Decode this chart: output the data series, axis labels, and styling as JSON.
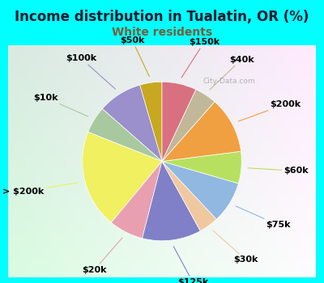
{
  "title": "Income distribution in Tualatin, OR (%)",
  "subtitle": "White residents",
  "background_color": "#00FFFF",
  "labels": [
    "$50k",
    "$100k",
    "$10k",
    "> $200k",
    "$20k",
    "$125k",
    "$30k",
    "$75k",
    "$60k",
    "$200k",
    "$40k",
    "$150k"
  ],
  "sizes": [
    4.5,
    9.0,
    5.5,
    20.0,
    7.0,
    12.0,
    4.0,
    8.5,
    6.5,
    11.5,
    4.5,
    7.0
  ],
  "colors": [
    "#c8a820",
    "#9b8fcc",
    "#a8c8a0",
    "#f0f060",
    "#e8a0b0",
    "#8080c8",
    "#f0c8a0",
    "#90b8e0",
    "#b8e060",
    "#f0a040",
    "#c0b898",
    "#d87080"
  ],
  "startangle": 90,
  "title_fontsize": 12,
  "subtitle_fontsize": 10,
  "label_fontsize": 8
}
